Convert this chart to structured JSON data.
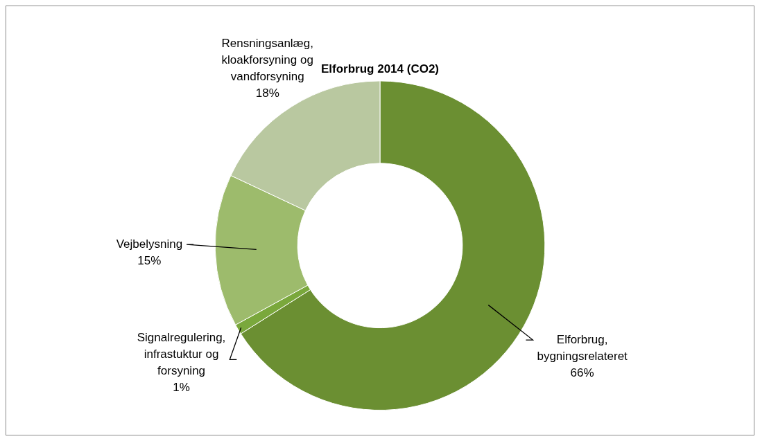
{
  "chart_data": {
    "type": "donut",
    "title": "Elforbrug 2014 (CO2)",
    "categories": [
      "Elforbrug, bygningsrelateret",
      "Signalregulering, infrastuktur og forsyning",
      "Vejbelysning",
      "Rensningsanlæg, kloakforsyning og vandforsyning"
    ],
    "values": [
      66,
      1,
      15,
      18
    ],
    "value_labels": [
      "66%",
      "1%",
      "15%",
      "18%"
    ],
    "colors": [
      "#6b8f32",
      "#7aa83c",
      "#9dbb6c",
      "#b9c8a0"
    ],
    "legend": false
  }
}
